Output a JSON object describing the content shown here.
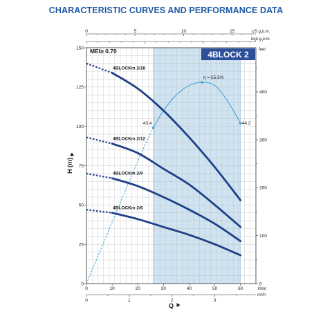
{
  "page": {
    "title": "CHARACTERISTIC CURVES AND PERFORMANCE DATA"
  },
  "chart_data": {
    "type": "line",
    "title": "4BLOCK 2",
    "mei_label": "MEI≥ 0.70",
    "xlabel": "Q",
    "ylabel": "H (m)",
    "x_unit": "l/min",
    "x_range": [
      0,
      66
    ],
    "y_range": [
      0,
      150
    ],
    "x_ticks": [
      0,
      10,
      20,
      30,
      40,
      50,
      60
    ],
    "y_ticks": [
      0,
      25,
      50,
      75,
      100,
      125,
      150
    ],
    "secondary_axes": {
      "top_us_gpm": {
        "unit": "US g.p.m.",
        "ticks": [
          0,
          5,
          10,
          15
        ]
      },
      "top_imp_gpm": {
        "unit": "Imp g.p.m.",
        "ticks": [
          0,
          5,
          10
        ]
      },
      "right_feet": {
        "unit": "feet",
        "ticks": [
          0,
          100,
          200,
          300,
          400
        ]
      },
      "bottom_m3h": {
        "unit": "m³/h",
        "ticks": [
          0,
          1,
          2,
          3
        ]
      }
    },
    "recommended_range": [
      26,
      60
    ],
    "series": [
      {
        "name": "4BLOCKm 2/18",
        "x": [
          0,
          10,
          20,
          30,
          40,
          50,
          60
        ],
        "y": [
          140,
          134,
          124,
          110,
          93,
          74,
          53
        ],
        "dashed_to_x": 10
      },
      {
        "name": "4BLOCKm 2/12",
        "x": [
          0,
          10,
          20,
          30,
          40,
          50,
          60
        ],
        "y": [
          93,
          89,
          83,
          73,
          63,
          50,
          36
        ],
        "dashed_to_x": 10
      },
      {
        "name": "4BLOCKm 2/9",
        "x": [
          0,
          10,
          20,
          30,
          40,
          50,
          60
        ],
        "y": [
          70,
          67,
          62,
          55,
          47,
          38,
          27
        ],
        "dashed_to_x": 10
      },
      {
        "name": "4BLOCKm 2/6",
        "x": [
          0,
          10,
          20,
          30,
          40,
          50,
          60
        ],
        "y": [
          47,
          45,
          41,
          36,
          31,
          25,
          18
        ],
        "dashed_to_x": 10
      }
    ],
    "efficiency_curve": {
      "x": [
        0,
        10,
        20,
        26,
        30,
        35,
        40,
        45,
        50,
        55,
        60
      ],
      "y": [
        0,
        39,
        78,
        99,
        110,
        120,
        126,
        128,
        126,
        116,
        102
      ],
      "dashed_to_x": 26,
      "points": [
        {
          "x": 26,
          "y": 99,
          "label": "43.4"
        },
        {
          "x": 45,
          "y": 128,
          "label": "η = 55.5%"
        },
        {
          "x": 60,
          "y": 102,
          "label": "44.2"
        }
      ]
    },
    "grid": true,
    "colors": {
      "title": "#1f5aa6",
      "curve": "#1e3f87",
      "efficiency": "#3ca0d6",
      "band": "#cfe3f1",
      "series_title_bg": "#2d4f9a"
    }
  }
}
